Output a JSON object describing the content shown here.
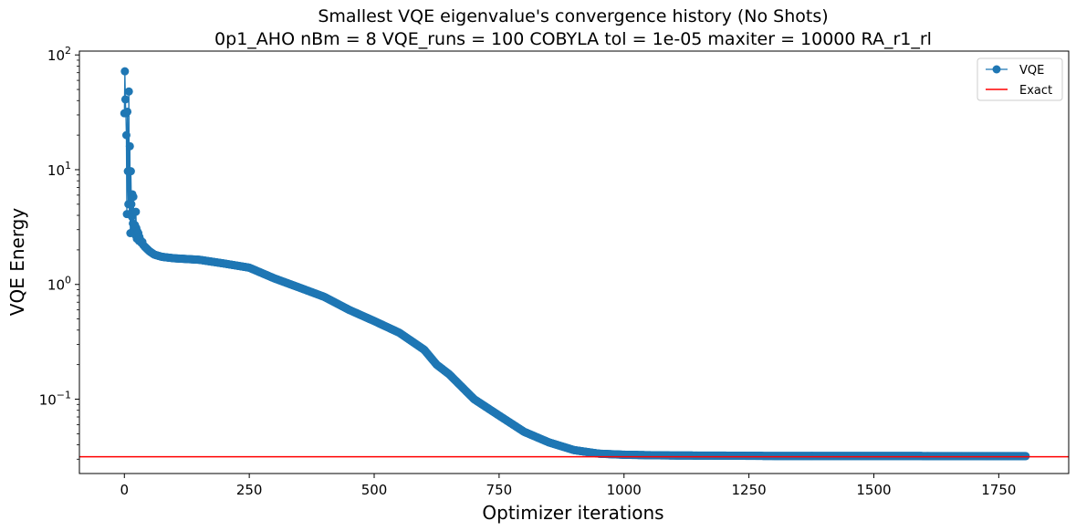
{
  "chart_data": {
    "type": "line",
    "title": "Smallest VQE eigenvalue's convergence history (No Shots)",
    "subtitle": "0p1_AHO    nBm = 8    VQE_runs = 100    COBYLA    tol = 1e-05    maxiter = 10000    RA_r1_rl",
    "xlabel": "Optimizer iterations",
    "ylabel": "VQE Energy",
    "xlim": [
      -90,
      1890
    ],
    "ylim": [
      0.0225,
      108
    ],
    "yscale": "log",
    "grid": false,
    "legend_position": "top-right",
    "x_ticks": [
      {
        "value": 0,
        "label": "0"
      },
      {
        "value": 250,
        "label": "250"
      },
      {
        "value": 500,
        "label": "500"
      },
      {
        "value": 750,
        "label": "750"
      },
      {
        "value": 1000,
        "label": "1000"
      },
      {
        "value": 1250,
        "label": "1250"
      },
      {
        "value": 1500,
        "label": "1500"
      },
      {
        "value": 1750,
        "label": "1750"
      }
    ],
    "y_ticks": [
      {
        "value": 0.1,
        "base": "10",
        "exp": "−1"
      },
      {
        "value": 1,
        "base": "10",
        "exp": "0"
      },
      {
        "value": 10,
        "base": "10",
        "exp": "1"
      },
      {
        "value": 100,
        "base": "10",
        "exp": "2"
      }
    ],
    "series": [
      {
        "name": "VQE",
        "color": "#1f77b4",
        "marker": "circle",
        "spikes": [
          [
            0,
            31
          ],
          [
            1,
            72
          ],
          [
            2,
            41
          ],
          [
            3,
            31
          ],
          [
            4,
            20
          ],
          [
            5,
            4.1
          ],
          [
            6,
            32
          ],
          [
            7,
            9.7
          ],
          [
            8,
            5.0
          ],
          [
            9,
            48
          ],
          [
            10,
            4.1
          ],
          [
            11,
            16
          ],
          [
            12,
            2.8
          ],
          [
            13,
            9.7
          ],
          [
            14,
            5.0
          ],
          [
            15,
            3.9
          ],
          [
            16,
            6.1
          ],
          [
            17,
            3.4
          ],
          [
            18,
            5.8
          ],
          [
            19,
            3.0
          ],
          [
            20,
            2.9
          ],
          [
            21,
            3.3
          ],
          [
            22,
            2.7
          ],
          [
            23,
            4.3
          ],
          [
            24,
            3.1
          ],
          [
            25,
            2.5
          ],
          [
            26,
            2.9
          ],
          [
            27,
            2.6
          ],
          [
            28,
            2.8
          ],
          [
            29,
            2.4
          ],
          [
            30,
            2.6
          ],
          [
            32,
            2.45
          ],
          [
            34,
            2.3
          ],
          [
            36,
            2.35
          ],
          [
            38,
            2.2
          ],
          [
            40,
            2.15
          ]
        ],
        "trend": [
          [
            40,
            2.15
          ],
          [
            50,
            1.95
          ],
          [
            60,
            1.82
          ],
          [
            75,
            1.74
          ],
          [
            100,
            1.69
          ],
          [
            150,
            1.64
          ],
          [
            200,
            1.52
          ],
          [
            250,
            1.4
          ],
          [
            300,
            1.13
          ],
          [
            350,
            0.94
          ],
          [
            400,
            0.78
          ],
          [
            450,
            0.6
          ],
          [
            500,
            0.48
          ],
          [
            550,
            0.38
          ],
          [
            600,
            0.27
          ],
          [
            625,
            0.2
          ],
          [
            650,
            0.165
          ],
          [
            700,
            0.1
          ],
          [
            750,
            0.072
          ],
          [
            800,
            0.052
          ],
          [
            850,
            0.042
          ],
          [
            900,
            0.036
          ],
          [
            950,
            0.0335
          ],
          [
            1000,
            0.0328
          ],
          [
            1050,
            0.0325
          ],
          [
            1100,
            0.0323
          ],
          [
            1200,
            0.0322
          ],
          [
            1300,
            0.032
          ],
          [
            1500,
            0.032
          ],
          [
            1804,
            0.0319
          ]
        ]
      },
      {
        "name": "Exact",
        "color": "#ff0000",
        "type": "hline",
        "value": 0.0315
      }
    ]
  }
}
